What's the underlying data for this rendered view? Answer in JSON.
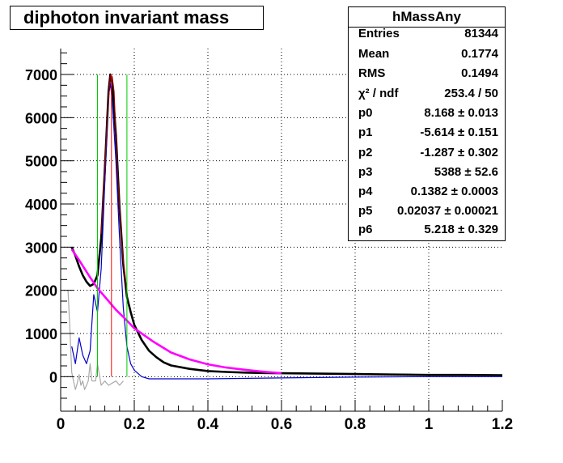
{
  "title": "diphoton invariant mass",
  "stats": {
    "name": "hMassAny",
    "rows": [
      {
        "key": "Entries",
        "value": "81344"
      },
      {
        "key": "Mean",
        "value": "0.1774"
      },
      {
        "key": "RMS",
        "value": "0.1494"
      },
      {
        "key": "χ² / ndf",
        "value": "253.4 / 50"
      },
      {
        "key": "p0",
        "value": "8.168 ± 0.013"
      },
      {
        "key": "p1",
        "value": "-5.614 ± 0.151"
      },
      {
        "key": "p2",
        "value": "-1.287 ± 0.302"
      },
      {
        "key": "p3",
        "value": "5388 ± 52.6"
      },
      {
        "key": "p4",
        "value": "0.1382 ± 0.0003"
      },
      {
        "key": "p5",
        "value": "0.02037 ± 0.00021"
      },
      {
        "key": "p6",
        "value": "5.218 ± 0.329"
      }
    ]
  },
  "chart_data": {
    "type": "line",
    "title": "diphoton invariant mass",
    "xlabel": "",
    "ylabel": "",
    "xlim": [
      0,
      1.2
    ],
    "ylim": [
      -800,
      7600
    ],
    "xticks": [
      0,
      0.2,
      0.4,
      0.6,
      0.8,
      1,
      1.2
    ],
    "xtick_labels": [
      "0",
      "0.2",
      "0.4",
      "0.6",
      "0.8",
      "1",
      "1.2"
    ],
    "yticks": [
      0,
      1000,
      2000,
      3000,
      4000,
      5000,
      6000,
      7000
    ],
    "ytick_labels": [
      "0",
      "1000",
      "2000",
      "3000",
      "4000",
      "5000",
      "6000",
      "7000"
    ],
    "grid": true,
    "series": [
      {
        "color": "#000000",
        "x": [
          0.03,
          0.04,
          0.05,
          0.06,
          0.07,
          0.08,
          0.09,
          0.1,
          0.11,
          0.12,
          0.13,
          0.135,
          0.14,
          0.15,
          0.16,
          0.17,
          0.18,
          0.19,
          0.2,
          0.22,
          0.24,
          0.26,
          0.28,
          0.3,
          0.35,
          0.4,
          0.45,
          0.5,
          0.55,
          0.6,
          0.7,
          0.8,
          0.9,
          1.0,
          1.1,
          1.2
        ],
        "y": [
          3000,
          2800,
          2550,
          2350,
          2200,
          2100,
          2150,
          2350,
          3200,
          4800,
          6600,
          7000,
          6800,
          5600,
          3900,
          2600,
          1850,
          1500,
          1200,
          850,
          600,
          450,
          330,
          260,
          180,
          130,
          110,
          95,
          85,
          80,
          70,
          60,
          50,
          40,
          40,
          35
        ]
      },
      {
        "color": "#0000cc",
        "x": [
          0.03,
          0.04,
          0.05,
          0.06,
          0.07,
          0.08,
          0.09,
          0.1,
          0.11,
          0.12,
          0.13,
          0.135,
          0.14,
          0.15,
          0.16,
          0.17,
          0.18,
          0.19,
          0.2,
          0.22,
          0.24,
          0.26,
          0.3,
          0.4,
          0.6,
          0.8,
          1.0,
          1.2
        ],
        "y": [
          700,
          300,
          900,
          500,
          300,
          600,
          1900,
          1500,
          2500,
          4500,
          6500,
          6800,
          6400,
          5000,
          3200,
          1600,
          700,
          300,
          150,
          0,
          -50,
          -50,
          -50,
          -50,
          -30,
          -10,
          0,
          0
        ]
      },
      {
        "color": "#aaaaaa",
        "x": [
          0.02,
          0.025,
          0.03,
          0.035,
          0.04,
          0.045,
          0.05,
          0.055,
          0.06,
          0.065,
          0.07,
          0.075,
          0.08,
          0.085,
          0.09,
          0.095,
          0.1,
          0.11,
          0.12,
          0.13,
          0.14,
          0.15,
          0.16,
          0.17
        ],
        "y": [
          2000,
          1100,
          100,
          -100,
          -300,
          -150,
          50,
          -200,
          -100,
          -300,
          -200,
          -100,
          300,
          -100,
          -100,
          -100,
          300,
          -200,
          -100,
          -200,
          -150,
          -100,
          -200,
          -100
        ]
      },
      {
        "color": "#ff00ff",
        "x": [
          0.03,
          0.05,
          0.08,
          0.1,
          0.13,
          0.15,
          0.18,
          0.2,
          0.25,
          0.3,
          0.35,
          0.4,
          0.45,
          0.5,
          0.55,
          0.6
        ],
        "y": [
          2950,
          2700,
          2300,
          2050,
          1750,
          1550,
          1300,
          1120,
          820,
          560,
          400,
          285,
          210,
          160,
          115,
          80
        ]
      },
      {
        "color": "#8b0000",
        "x": [
          0.11,
          0.12,
          0.125,
          0.13,
          0.135,
          0.14,
          0.145,
          0.15,
          0.155,
          0.16,
          0.165,
          0.17,
          0.175,
          0.18
        ],
        "y": [
          3300,
          4800,
          5700,
          6500,
          6980,
          6950,
          6600,
          5600,
          4700,
          3900,
          3200,
          2700,
          2300,
          2000
        ]
      }
    ],
    "vertical_lines": [
      {
        "color": "#00cc00",
        "x": 0.1,
        "y": [
          0,
          7000
        ]
      },
      {
        "color": "#00cc00",
        "x": 0.18,
        "y": [
          0,
          7000
        ]
      },
      {
        "color": "#ff0000",
        "x": 0.138,
        "y": [
          0,
          7000
        ]
      }
    ]
  }
}
